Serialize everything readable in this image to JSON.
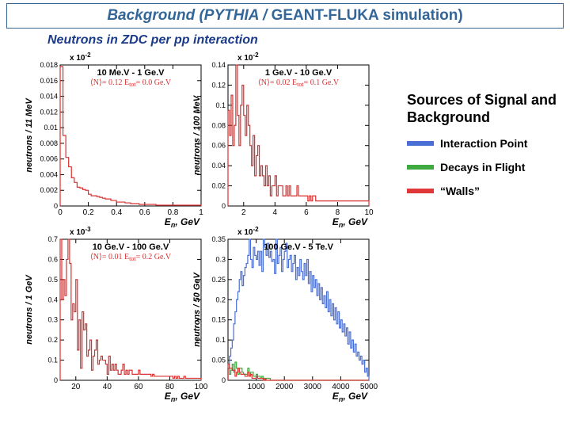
{
  "title_prefix": "Background (PYTHIA / ",
  "title_geant": "GEANT-FLUKA simulation)",
  "subtitle": "Neutrons in ZDC per pp interaction",
  "legend": {
    "heading": "Sources of Signal and Background",
    "items": [
      {
        "label": "Interaction Point",
        "color": "#4a6fd4"
      },
      {
        "label": "Decays in Flight",
        "color": "#3faa3f"
      },
      {
        "label": "“Walls”",
        "color": "#e03838"
      }
    ]
  },
  "axis_color": "#000000",
  "colors": {
    "red": "#d93030",
    "blue": "#4a6fd4",
    "green": "#3faa3f",
    "tick": "#000"
  },
  "panels": [
    {
      "row": 0,
      "col": 0,
      "title": "10 Me.V - 1 Ge.V",
      "anno_pre": "⟨N⟩= 0.12  E",
      "anno_sub": "tot",
      "anno_post": "=  0.0 Ge.V",
      "anno_color": "#d93030",
      "multiplier": "x 10",
      "mult_exp": "-2",
      "xlabel": "E",
      "xlabel_sub": "n",
      "xlabel_unit": ", GeV",
      "ylabel": "neutrons / 11 MeV",
      "xlim": [
        0,
        1
      ],
      "xticks": [
        0,
        0.2,
        0.4,
        0.6,
        0.8,
        1
      ],
      "ylim": [
        0,
        0.018
      ],
      "yticks": [
        0,
        0.002,
        0.004,
        0.006,
        0.008,
        0.01,
        0.012,
        0.014,
        0.016,
        0.018
      ],
      "series": [
        {
          "color": "#d93030",
          "y": [
            0.0178,
            0.009,
            0.0062,
            0.005,
            0.0036,
            0.003,
            0.0024,
            0.0023,
            0.0021,
            0.002,
            0.0015,
            0.0013,
            0.0013,
            0.0012,
            0.0011,
            0.001,
            0.0009,
            0.0009,
            0.0007,
            0.0007,
            0.0005,
            0.0005,
            0.0005,
            0.0004,
            0.0004,
            0.0003,
            0.0003,
            0.0003,
            0.0002,
            0.0002,
            0.0002,
            0.0002,
            0.0002,
            0.0002,
            0.0001,
            0.0001,
            0.0001,
            0.0001,
            0.0001,
            0.0001,
            0.0001,
            0.0001,
            0.0001,
            0.0001,
            0.0001,
            0.0001,
            0.0001,
            0.0001,
            0.0001,
            0.0001
          ]
        }
      ]
    },
    {
      "row": 0,
      "col": 1,
      "title": "1 Ge.V - 10 Ge.V",
      "anno_pre": "⟨N⟩= 0.02  E",
      "anno_sub": "tot",
      "anno_post": "=  0.1 Ge.V",
      "anno_color": "#d93030",
      "multiplier": "x 10",
      "mult_exp": "-2",
      "xlabel": "E",
      "xlabel_sub": "n",
      "xlabel_unit": ", GeV",
      "ylabel": "neutrons / 100 MeV",
      "xlim": [
        1,
        10
      ],
      "xticks": [
        2,
        4,
        6,
        8,
        10
      ],
      "ylim": [
        0,
        0.14
      ],
      "yticks": [
        0,
        0.02,
        0.04,
        0.06,
        0.08,
        0.1,
        0.12,
        0.14
      ],
      "series": [
        {
          "color": "#d93030",
          "y": [
            0.095,
            0.07,
            0.11,
            0.06,
            0.08,
            0.14,
            0.09,
            0.06,
            0.1,
            0.12,
            0.09,
            0.07,
            0.1,
            0.08,
            0.06,
            0.04,
            0.07,
            0.03,
            0.05,
            0.06,
            0.03,
            0.04,
            0.03,
            0.02,
            0.04,
            0.02,
            0.03,
            0.01,
            0.02,
            0.02,
            0.03,
            0.01,
            0.02,
            0.02,
            0.02,
            0.01,
            0.01,
            0.02,
            0.01,
            0.02,
            0.01,
            0.01,
            0.01,
            0.01,
            0.02,
            0.01,
            0.01,
            0.01,
            0.01,
            0.01,
            0.01,
            0.005,
            0.01,
            0.005,
            0.01,
            0.01,
            0.005,
            0.005,
            0.005,
            0.005,
            0.005,
            0.005,
            0.005,
            0.005,
            0.005,
            0.005,
            0.005,
            0.005,
            0.005,
            0.005,
            0.005,
            0.005,
            0.005,
            0.005,
            0.005,
            0.005,
            0.005,
            0.005,
            0.005,
            0.005,
            0.005,
            0.005,
            0.005,
            0.005,
            0.005,
            0.005,
            0.005,
            0.005,
            0.005,
            0.005
          ]
        }
      ]
    },
    {
      "row": 1,
      "col": 0,
      "title": "10 Ge.V - 100 Ge.V",
      "anno_pre": "⟨N⟩= 0.01  E",
      "anno_sub": "tot",
      "anno_post": "=  0.2 Ge.V",
      "anno_color": "#d93030",
      "multiplier": "x 10",
      "mult_exp": "-3",
      "xlabel": "E",
      "xlabel_sub": "n",
      "xlabel_unit": ", GeV",
      "ylabel": "neutrons / 1 GeV",
      "xlim": [
        10,
        100
      ],
      "xticks": [
        20,
        40,
        60,
        80,
        100
      ],
      "ylim": [
        0,
        0.7
      ],
      "yticks": [
        0,
        0.1,
        0.2,
        0.3,
        0.4,
        0.5,
        0.6,
        0.7
      ],
      "series": [
        {
          "color": "#d93030",
          "y": [
            0.7,
            0.4,
            0.5,
            0.42,
            0.6,
            0.7,
            0.58,
            0.3,
            0.38,
            0.34,
            0.5,
            0.15,
            0.3,
            0.06,
            0.34,
            0.25,
            0.28,
            0.12,
            0.15,
            0.2,
            0.05,
            0.12,
            0.15,
            0.2,
            0.08,
            0.1,
            0.12,
            0.1,
            0.1,
            0.08,
            0.03,
            0.12,
            0.05,
            0.08,
            0.05,
            0.08,
            0.05,
            0.03,
            0.03,
            0.05,
            0.08,
            0.03,
            0.05,
            0.03,
            0.05,
            0.05,
            0.03,
            0.03,
            0.03,
            0.03,
            0.05,
            0.03,
            0.03,
            0.03,
            0.03,
            0.03,
            0.03,
            0.03,
            0.02,
            0.03,
            0.02,
            0.02,
            0.02,
            0.02,
            0.02,
            0.02,
            0.02,
            0.02,
            0.02,
            0.02,
            0.02,
            0.02,
            0.01,
            0.02,
            0.01,
            0.02,
            0.01,
            0.01,
            0.01,
            0.02,
            0.01,
            0.01,
            0.01,
            0.01,
            0.01,
            0.01,
            0.01,
            0.01,
            0.01,
            0.01
          ]
        }
      ]
    },
    {
      "row": 1,
      "col": 1,
      "title": "100 Ge.V - 5 Te.V",
      "anno_pre": "",
      "anno_sub": "",
      "anno_post": "",
      "anno_color": "#d93030",
      "multiplier": "x 10",
      "mult_exp": "-2",
      "xlabel": "E",
      "xlabel_sub": "n",
      "xlabel_unit": ", GeV",
      "ylabel": "neutrons / 50 GeV",
      "xlim": [
        0,
        5000
      ],
      "xticks": [
        1000,
        2000,
        3000,
        4000,
        5000
      ],
      "ylim": [
        0,
        0.35
      ],
      "yticks": [
        0,
        0.05,
        0.1,
        0.15,
        0.2,
        0.25,
        0.3,
        0.35
      ],
      "series": [
        {
          "color": "#4a6fd4",
          "y": [
            0.03,
            0.06,
            0.08,
            0.1,
            0.14,
            0.17,
            0.2,
            0.22,
            0.25,
            0.27,
            0.235,
            0.26,
            0.28,
            0.29,
            0.31,
            0.35,
            0.3,
            0.28,
            0.33,
            0.31,
            0.3,
            0.32,
            0.285,
            0.32,
            0.27,
            0.35,
            0.33,
            0.31,
            0.34,
            0.305,
            0.32,
            0.295,
            0.3,
            0.265,
            0.35,
            0.29,
            0.31,
            0.33,
            0.27,
            0.3,
            0.32,
            0.34,
            0.28,
            0.3,
            0.31,
            0.27,
            0.29,
            0.31,
            0.25,
            0.28,
            0.26,
            0.3,
            0.27,
            0.25,
            0.29,
            0.26,
            0.3,
            0.24,
            0.27,
            0.22,
            0.26,
            0.23,
            0.25,
            0.21,
            0.24,
            0.2,
            0.23,
            0.19,
            0.21,
            0.18,
            0.22,
            0.17,
            0.2,
            0.16,
            0.19,
            0.15,
            0.18,
            0.14,
            0.17,
            0.13,
            0.15,
            0.12,
            0.14,
            0.11,
            0.13,
            0.09,
            0.12,
            0.08,
            0.1,
            0.07,
            0.09,
            0.06,
            0.07,
            0.05,
            0.06,
            0.04,
            0.05,
            0.02,
            0.03,
            0.01
          ]
        },
        {
          "color": "#3faa3f",
          "y": [
            0.03,
            0.015,
            0.025,
            0.04,
            0.02,
            0.045,
            0.03,
            0.015,
            0.03,
            0.03,
            0.02,
            0.015,
            0.015,
            0.015,
            0.03,
            0.01,
            0.02,
            0.02,
            0.01,
            0.01,
            0.015,
            0.01,
            0.01,
            0.005,
            0.01,
            0.005,
            0.005,
            0.005,
            0.005,
            0.005,
            0,
            0,
            0,
            0,
            0,
            0,
            0,
            0,
            0,
            0,
            0,
            0,
            0,
            0,
            0,
            0,
            0,
            0,
            0,
            0,
            0,
            0,
            0,
            0,
            0,
            0,
            0,
            0,
            0,
            0,
            0,
            0,
            0,
            0,
            0,
            0,
            0,
            0,
            0,
            0,
            0,
            0,
            0,
            0,
            0,
            0,
            0,
            0,
            0,
            0,
            0,
            0,
            0,
            0,
            0,
            0,
            0,
            0,
            0,
            0,
            0,
            0,
            0,
            0,
            0,
            0,
            0,
            0,
            0,
            0
          ]
        },
        {
          "color": "#d93030",
          "y": [
            0.04,
            0.03,
            0.03,
            0.025,
            0.025,
            0.01,
            0.02,
            0.03,
            0.02,
            0.015,
            0.015,
            0.015,
            0.01,
            0.01,
            0.02,
            0.01,
            0.015,
            0.005,
            0.005,
            0.005,
            0.01,
            0.005,
            0.005,
            0.005,
            0.005,
            0,
            0.003,
            0,
            0,
            0,
            0,
            0,
            0,
            0,
            0,
            0,
            0,
            0,
            0,
            0,
            0,
            0,
            0,
            0,
            0,
            0,
            0,
            0,
            0,
            0,
            0,
            0,
            0,
            0,
            0,
            0,
            0,
            0,
            0,
            0,
            0,
            0,
            0,
            0,
            0,
            0,
            0,
            0,
            0,
            0,
            0,
            0,
            0,
            0,
            0,
            0,
            0,
            0,
            0,
            0,
            0,
            0,
            0,
            0,
            0,
            0,
            0,
            0,
            0,
            0,
            0,
            0,
            0,
            0,
            0,
            0,
            0,
            0,
            0,
            0
          ]
        }
      ]
    }
  ]
}
